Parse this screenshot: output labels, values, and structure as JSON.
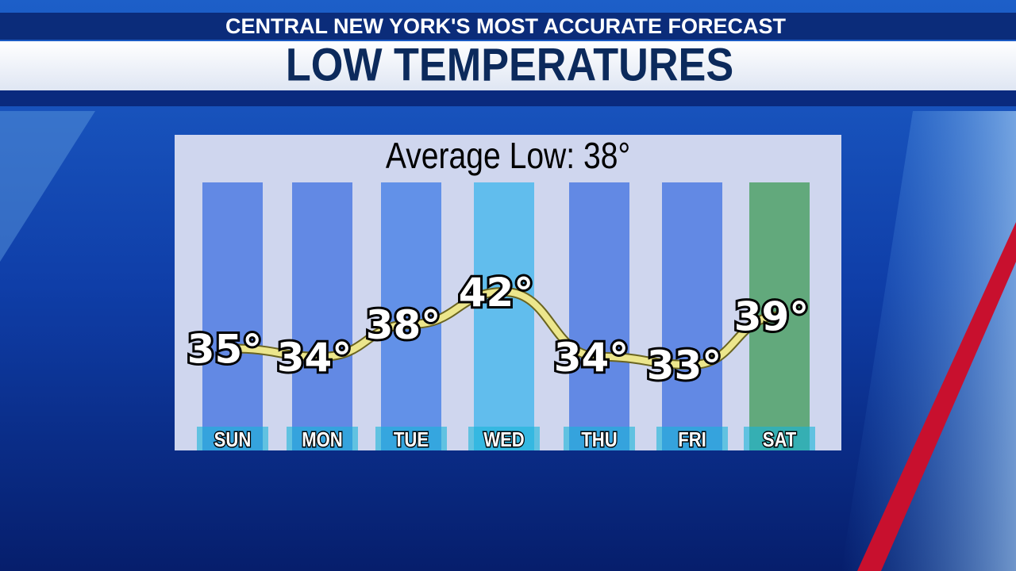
{
  "header": "CENTRAL NEW YORK'S MOST ACCURATE FORECAST",
  "chart_data": {
    "type": "line",
    "title": "LOW TEMPERATURES",
    "subtitle": "Average Low: 38°",
    "categories": [
      "SUN",
      "MON",
      "TUE",
      "WED",
      "THU",
      "FRI",
      "SAT"
    ],
    "values": [
      35,
      34,
      38,
      42,
      34,
      33,
      39
    ],
    "value_labels": [
      "35°",
      "34°",
      "38°",
      "42°",
      "34°",
      "33°",
      "39°"
    ],
    "color": "#ece68c"
  }
}
